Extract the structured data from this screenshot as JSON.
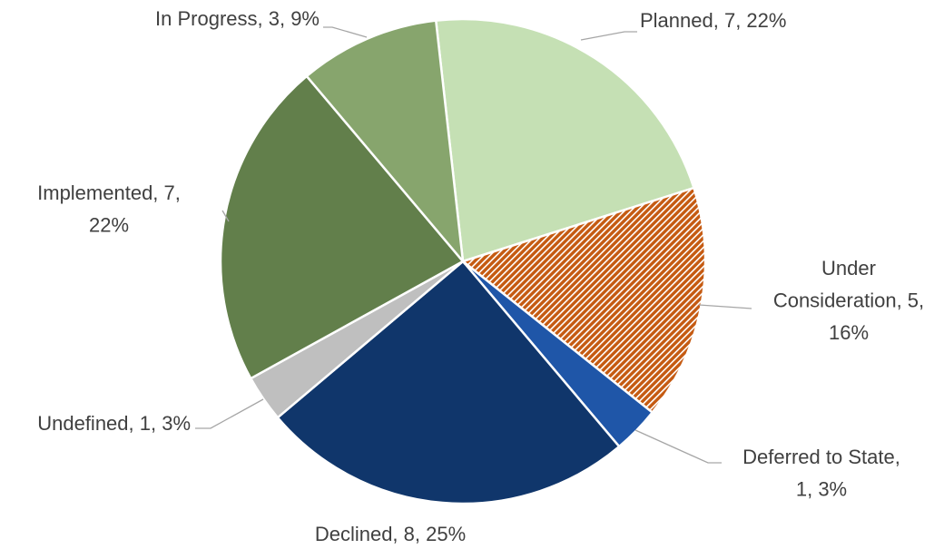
{
  "chart_data": {
    "type": "pie",
    "values": [
      7,
      5,
      1,
      8,
      1,
      7,
      3
    ],
    "value_labels": [
      [
        "Planned, 7, 22%"
      ],
      [
        "Under",
        "Consideration, 5,",
        "16%"
      ],
      [
        "Deferred to State,",
        "1, 3%"
      ],
      [
        "Declined, 8, 25%"
      ],
      [
        "Undefined, 1, 3%"
      ],
      [
        "Implemented, 7,",
        "22%"
      ],
      [
        "In Progress, 3, 9%"
      ]
    ],
    "colors": [
      "#c5e0b4",
      "#c55a11",
      "#1f56a8",
      "#10366b",
      "#bfbfbf",
      "#627f4b",
      "#87a56d"
    ],
    "hatched": [
      false,
      true,
      false,
      false,
      false,
      false,
      false
    ]
  }
}
